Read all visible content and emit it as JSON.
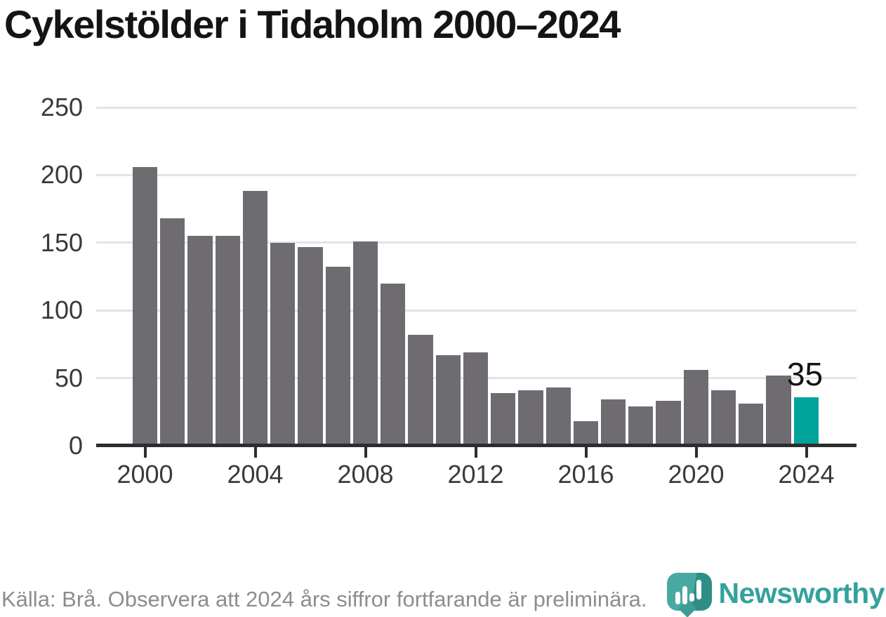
{
  "title": "Cykelstölder i Tidaholm 2000–2024",
  "footer": {
    "source_note": "Källa: Brå. Observera att 2024 års siffror fortfarande är preliminära."
  },
  "logo": {
    "name": "Newsworthy",
    "icon": "newsworthy-speech-bubble-chart-icon"
  },
  "colors": {
    "bar": "#6e6c71",
    "highlight": "#00a49b",
    "axis": "#2d2d2d",
    "grid": "#e4e4e4",
    "title_text": "#141414",
    "tick_text": "#3a3a3a",
    "footer_text": "#8d8d8d",
    "logo_teal": "#35a19b"
  },
  "chart_data": {
    "type": "bar",
    "title": "Cykelstölder i Tidaholm 2000–2024",
    "xlabel": "",
    "ylabel": "",
    "categories": [
      2000,
      2001,
      2002,
      2003,
      2004,
      2005,
      2006,
      2007,
      2008,
      2009,
      2010,
      2011,
      2012,
      2013,
      2014,
      2015,
      2016,
      2017,
      2018,
      2019,
      2020,
      2021,
      2022,
      2023,
      2024
    ],
    "values": [
      205,
      167,
      154,
      154,
      187,
      149,
      146,
      131,
      150,
      119,
      81,
      66,
      68,
      38,
      40,
      42,
      17,
      33,
      28,
      32,
      55,
      40,
      30,
      51,
      35
    ],
    "ylim": [
      0,
      250
    ],
    "yticks": [
      0,
      50,
      100,
      150,
      200,
      250
    ],
    "xticks": [
      2000,
      2004,
      2008,
      2012,
      2016,
      2020,
      2024
    ],
    "grid": "horizontal",
    "legend": "none",
    "bar_color": "#6e6c71",
    "highlight": {
      "category": 2024,
      "value": 35,
      "label": "35",
      "color": "#00a49b"
    },
    "annotations": [
      {
        "text": "35",
        "category": 2024,
        "position": "above-bar"
      }
    ]
  }
}
